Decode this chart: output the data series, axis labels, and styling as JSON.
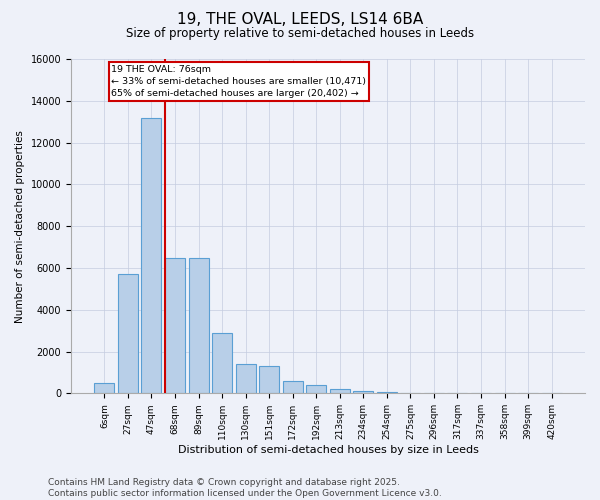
{
  "title": "19, THE OVAL, LEEDS, LS14 6BA",
  "subtitle": "Size of property relative to semi-detached houses in Leeds",
  "xlabel": "Distribution of semi-detached houses by size in Leeds",
  "ylabel": "Number of semi-detached properties",
  "bin_labels": [
    "6sqm",
    "27sqm",
    "47sqm",
    "68sqm",
    "89sqm",
    "110sqm",
    "130sqm",
    "151sqm",
    "172sqm",
    "192sqm",
    "213sqm",
    "234sqm",
    "254sqm",
    "275sqm",
    "296sqm",
    "317sqm",
    "337sqm",
    "358sqm",
    "399sqm",
    "420sqm"
  ],
  "bar_values": [
    500,
    5700,
    13200,
    6500,
    6500,
    2900,
    1400,
    1300,
    600,
    400,
    200,
    130,
    80,
    30,
    10,
    5,
    3,
    2,
    1,
    0
  ],
  "bar_color": "#b8cfe8",
  "bar_edge_color": "#5a9fd4",
  "vline_color": "#cc0000",
  "vline_x_index": 3,
  "annotation_text": "19 THE OVAL: 76sqm\n← 33% of semi-detached houses are smaller (10,471)\n65% of semi-detached houses are larger (20,402) →",
  "annotation_box_color": "#ffffff",
  "annotation_box_edge": "#cc0000",
  "ylim": [
    0,
    16000
  ],
  "yticks": [
    0,
    2000,
    4000,
    6000,
    8000,
    10000,
    12000,
    14000,
    16000
  ],
  "footer": "Contains HM Land Registry data © Crown copyright and database right 2025.\nContains public sector information licensed under the Open Government Licence v3.0.",
  "background_color": "#eef1f9",
  "title_fontsize": 11,
  "subtitle_fontsize": 8.5,
  "footer_fontsize": 6.5
}
